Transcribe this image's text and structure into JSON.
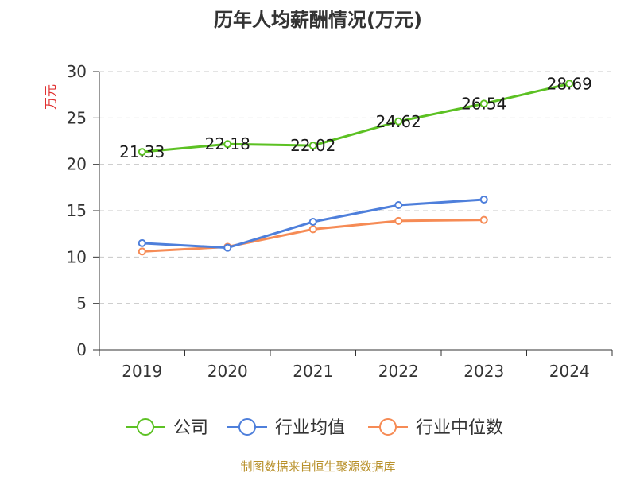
{
  "colors": {
    "company": "#5cc123",
    "industry_avg": "#4e7fdb",
    "industry_median": "#f68b55",
    "ylabel": "#e03030",
    "source": "#b8902a"
  },
  "chart_data": {
    "type": "line",
    "title": "历年人均薪酬情况(万元)",
    "ylabel": "万元",
    "categories": [
      "2019",
      "2020",
      "2021",
      "2022",
      "2023",
      "2024"
    ],
    "yticks": [
      "0",
      "5",
      "10",
      "15",
      "20",
      "25",
      "30"
    ],
    "ylim": [
      0,
      30
    ],
    "grid": true,
    "legend_position": "bottom",
    "series": [
      {
        "key": "company",
        "name": "公司",
        "values": [
          21.33,
          22.18,
          22.02,
          24.62,
          26.54,
          28.69
        ],
        "labels": [
          "21.33",
          "22.18",
          "22.02",
          "24.62",
          "26.54",
          "28.69"
        ]
      },
      {
        "key": "industry_avg",
        "name": "行业均值",
        "values": [
          11.5,
          11.0,
          13.8,
          15.6,
          16.2,
          null
        ]
      },
      {
        "key": "industry_median",
        "name": "行业中位数",
        "values": [
          10.6,
          11.1,
          13.0,
          13.9,
          14.0,
          null
        ]
      }
    ]
  },
  "footer": {
    "source": "制图数据来自恒生聚源数据库"
  }
}
